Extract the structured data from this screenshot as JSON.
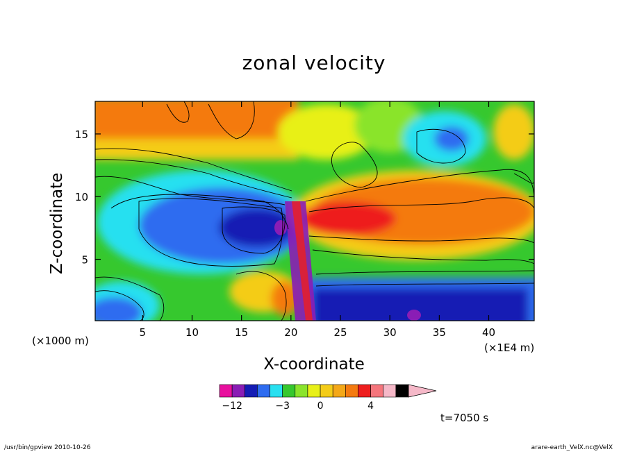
{
  "chart_data": {
    "type": "heatmap",
    "title": "zonal velocity",
    "xlabel": "X-coordinate",
    "ylabel": "Z-coordinate",
    "x_unit_left": "(×1000 m)",
    "x_unit_right": "(×1E4 m)",
    "x_ticks": [
      5,
      10,
      15,
      20,
      25,
      30,
      35,
      40
    ],
    "y_ticks": [
      5,
      10,
      15
    ],
    "xlim": [
      0.2,
      44.6
    ],
    "ylim": [
      0.1,
      17.6
    ],
    "grid": false,
    "colorbar": {
      "levels": [
        -14,
        -12,
        -9,
        -6,
        -4,
        -3,
        -2,
        -1,
        0,
        1,
        2,
        3,
        4,
        6,
        9,
        12
      ],
      "colors": [
        "#e8109e",
        "#8a1db5",
        "#141cb4",
        "#2e6cf0",
        "#28e0f0",
        "#36c82e",
        "#8ae42c",
        "#e8f018",
        "#f4cc18",
        "#f4a818",
        "#f47a10",
        "#ee1e1e",
        "#f5757c",
        "#f5b8c8"
      ],
      "labels": [
        "−12",
        "−3",
        "0",
        "4"
      ],
      "label_levels": [
        -12,
        -3,
        0,
        4
      ]
    },
    "time_label": "t=7050 s"
  },
  "footer": {
    "left": "/usr/bin/gpview   2010-10-26",
    "right": "arare-earth_VelX.nc@VelX"
  }
}
